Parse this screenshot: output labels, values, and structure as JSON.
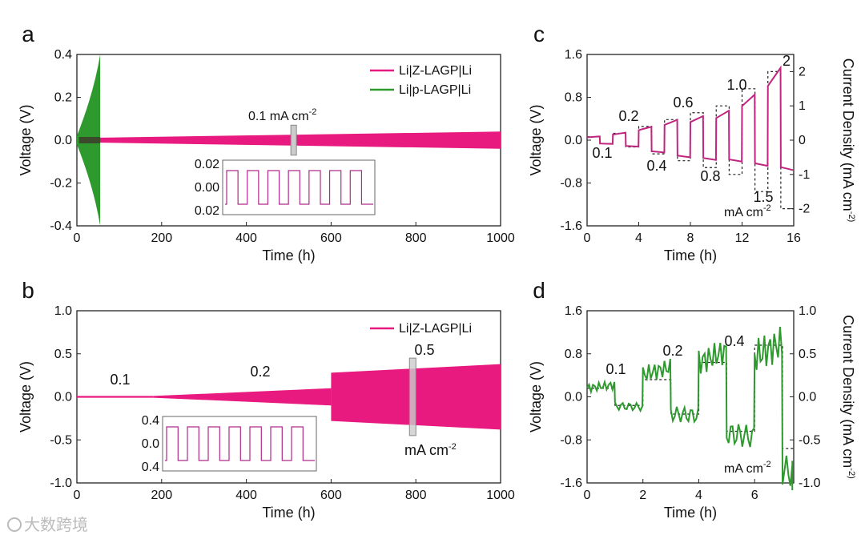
{
  "colors": {
    "pink": "#e8197f",
    "green": "#2e9a2e",
    "insetPink": "#b02a8a"
  },
  "watermark": "大数跨境",
  "chart_data": [
    {
      "panel": "a",
      "type": "line",
      "xlabel": "Time (h)",
      "ylabel": "Voltage (V)",
      "xlim": [
        0,
        1000
      ],
      "ylim": [
        -0.4,
        0.4
      ],
      "xticks": [
        "0",
        "200",
        "400",
        "600",
        "800",
        "1000"
      ],
      "yticks": [
        "-0.4",
        "-0.2",
        "0.0",
        "0.2",
        "0.4"
      ],
      "legend": [
        "Li|Z-LAGP|Li",
        "Li|p-LAGP|Li"
      ],
      "legend_pos": "top-right",
      "annotation": "0.1 mA cm",
      "annotation_sup": "-2",
      "series": [
        {
          "name": "Li|Z-LAGP|Li",
          "x": [
            0,
            1000
          ],
          "amplitude": [
            0.01,
            0.04
          ]
        },
        {
          "name": "Li|p-LAGP|Li",
          "x": [
            0,
            55
          ],
          "amplitude": [
            0.2,
            0.4
          ]
        }
      ],
      "inset": {
        "yticks": [
          "0.02",
          "0.00",
          "0.02"
        ],
        "ylim": [
          -0.02,
          0.02
        ],
        "amplitude": 0.015,
        "cycles": 7
      }
    },
    {
      "panel": "b",
      "type": "line",
      "xlabel": "Time (h)",
      "ylabel": "Voltage (V)",
      "xlim": [
        0,
        1000
      ],
      "ylim": [
        -1.0,
        1.0
      ],
      "xticks": [
        "0",
        "200",
        "400",
        "600",
        "800",
        "1000"
      ],
      "yticks": [
        "-1.0",
        "-0.5",
        "0.0",
        "0.5",
        "1.0"
      ],
      "legend": [
        "Li|Z-LAGP|Li"
      ],
      "legend_pos": "top-right",
      "annotations": [
        "0.1",
        "0.2",
        "0.5",
        "mA cm"
      ],
      "annotation_sup": "-2",
      "series": [
        {
          "name": "Li|Z-LAGP|Li",
          "segments": [
            {
              "x": [
                0,
                180
              ],
              "amplitude": [
                0.01,
                0.01
              ]
            },
            {
              "x": [
                180,
                600
              ],
              "amplitude": [
                0.01,
                0.1
              ]
            },
            {
              "x": [
                600,
                1000
              ],
              "amplitude": [
                0.28,
                0.38
              ]
            }
          ]
        }
      ],
      "inset": {
        "yticks": [
          "0.4",
          "0.0",
          "0.4"
        ],
        "ylim": [
          -0.4,
          0.4
        ],
        "amplitude": 0.3,
        "cycles": 7
      }
    },
    {
      "panel": "c",
      "type": "line",
      "xlabel": "Time (h)",
      "ylabel": "Voltage (V)",
      "y2label": "Current Density (mA cm",
      "y2sup": "-2",
      "xlim": [
        0,
        16
      ],
      "ylim": [
        -1.6,
        1.6
      ],
      "y2lim": [
        -2.5,
        2.5
      ],
      "xticks": [
        "0",
        "4",
        "8",
        "12",
        "16"
      ],
      "yticks": [
        "-1.6",
        "-0.8",
        "0.0",
        "0.8",
        "1.6"
      ],
      "y2ticks": [
        "-2",
        "-1",
        "0",
        "1",
        "2"
      ],
      "current_labels": [
        "0.1",
        "0.2",
        "0.4",
        "0.6",
        "0.8",
        "1.0",
        "1.5",
        "2"
      ],
      "unit": "mA cm",
      "unit_sup": "-2",
      "currents": [
        0.1,
        0.2,
        0.4,
        0.6,
        0.8,
        1.0,
        1.5,
        2
      ],
      "voltage_charge": [
        0.07,
        0.14,
        0.25,
        0.38,
        0.45,
        0.55,
        0.85,
        1.35
      ],
      "voltage_discharge": [
        -0.07,
        -0.12,
        -0.23,
        -0.32,
        -0.37,
        -0.4,
        -0.48,
        -0.56
      ]
    },
    {
      "panel": "d",
      "type": "line",
      "xlabel": "Time (h)",
      "ylabel": "Voltage (V)",
      "y2label": "Current Density (mA cm",
      "y2sup": "-2",
      "xlim": [
        0,
        7.4
      ],
      "ylim": [
        -1.6,
        1.6
      ],
      "y2lim": [
        -1.0,
        1.0
      ],
      "xticks": [
        "0",
        "2",
        "4",
        "6"
      ],
      "yticks": [
        "-1.6",
        "-0.8",
        "0.0",
        "0.8",
        "1.6"
      ],
      "y2ticks": [
        "-1.0",
        "-0.5",
        "0.0",
        "0.5",
        "1.0"
      ],
      "current_labels": [
        "0.1",
        "0.2",
        "0.4"
      ],
      "unit": "mA cm",
      "unit_sup": "-2",
      "currents": [
        0.1,
        0.2,
        0.4,
        0.6
      ],
      "voltage_charge": [
        0.22,
        0.55,
        0.85,
        1.0
      ],
      "voltage_discharge": [
        -0.19,
        -0.35,
        -0.75,
        -1.5
      ]
    }
  ]
}
